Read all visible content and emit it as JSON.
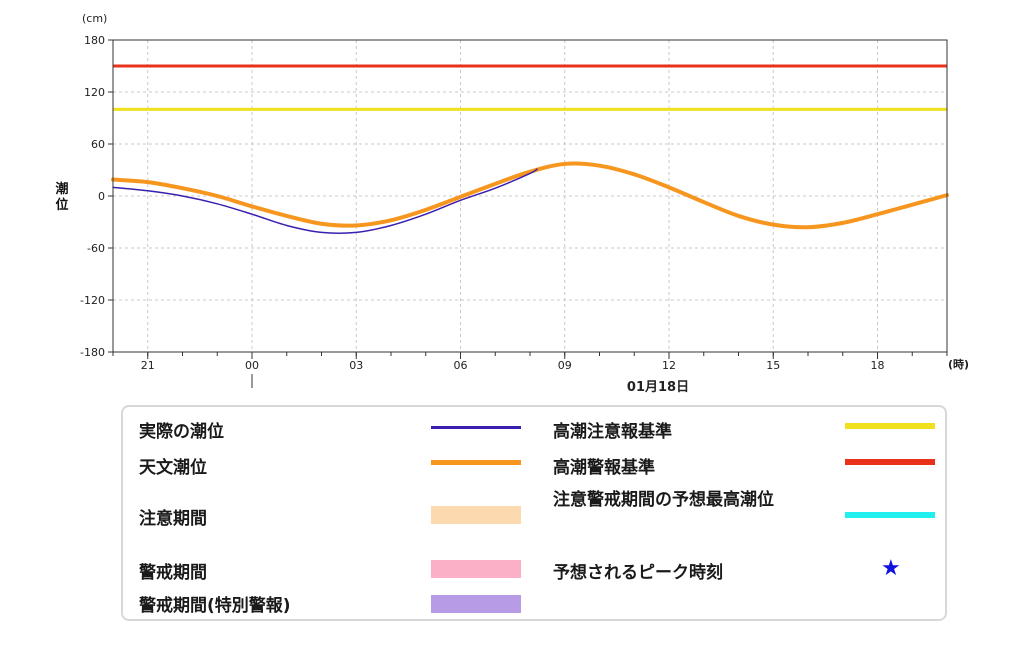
{
  "chart_data": {
    "type": "line",
    "y_unit_label": "(cm)",
    "ylabel": "潮位",
    "x_unit_label": "(時)",
    "date_label": "01月18日",
    "ylim": [
      -180,
      180
    ],
    "y_ticks": [
      180,
      120,
      60,
      0,
      -60,
      -120,
      -180
    ],
    "xlim": [
      -4,
      20
    ],
    "x_ticks": [
      {
        "hour": -3,
        "label": "21"
      },
      {
        "hour": 0,
        "label": "00"
      },
      {
        "hour": 3,
        "label": "03"
      },
      {
        "hour": 6,
        "label": "06"
      },
      {
        "hour": 9,
        "label": "09"
      },
      {
        "hour": 12,
        "label": "12"
      },
      {
        "hour": 15,
        "label": "15"
      },
      {
        "hour": 18,
        "label": "18"
      }
    ],
    "grid": true,
    "thresholds": [
      {
        "name": "高潮警報基準",
        "value": 150,
        "color": "#e8321a"
      },
      {
        "name": "高潮注意報基準",
        "value": 100,
        "color": "#f0e01e"
      }
    ],
    "series": [
      {
        "name": "天文潮位",
        "color": "#f7961e",
        "x": [
          -4,
          -3,
          -2,
          -1,
          0,
          1,
          2,
          3,
          4,
          5,
          6,
          7,
          8,
          9,
          10,
          11,
          12,
          13,
          14,
          15,
          16,
          17,
          18,
          19,
          20
        ],
        "values": [
          19,
          16,
          9,
          0,
          -12,
          -23,
          -32,
          -34,
          -28,
          -16,
          -1,
          14,
          28,
          37,
          35,
          25,
          10,
          -7,
          -23,
          -33,
          -36,
          -31,
          -21,
          -10,
          1
        ]
      },
      {
        "name": "実際の潮位",
        "color": "#3a1fb0",
        "x": [
          -4,
          -3,
          -2,
          -1,
          0,
          1,
          2,
          3,
          4,
          5,
          6,
          7,
          8,
          8.2
        ],
        "values": [
          10,
          6,
          0,
          -9,
          -21,
          -34,
          -42,
          -42,
          -34,
          -21,
          -5,
          9,
          26,
          31
        ]
      }
    ]
  },
  "legend": {
    "actual_tide": "実際の潮位",
    "astronomical_tide": "天文潮位",
    "caution_period": "注意期間",
    "warning_period": "警戒期間",
    "warning_period_special": "警戒期間(特別警報)",
    "storm_surge_advisory": "高潮注意報基準",
    "storm_surge_warning": "高潮警報基準",
    "predicted_max": "注意警戒期間の予想最高潮位",
    "peak_time": "予想されるピーク時刻",
    "colors": {
      "actual_tide": "#3a1fb0",
      "astronomical_tide": "#f7961e",
      "caution_period": "#fdd9b0",
      "warning_period": "#fbb0c8",
      "warning_period_special": "#b79be6",
      "storm_surge_advisory": "#f0e01e",
      "storm_surge_warning": "#e8321a",
      "predicted_max": "#22f0f0",
      "peak_star": "#1010e0"
    },
    "peak_symbol": "★"
  }
}
